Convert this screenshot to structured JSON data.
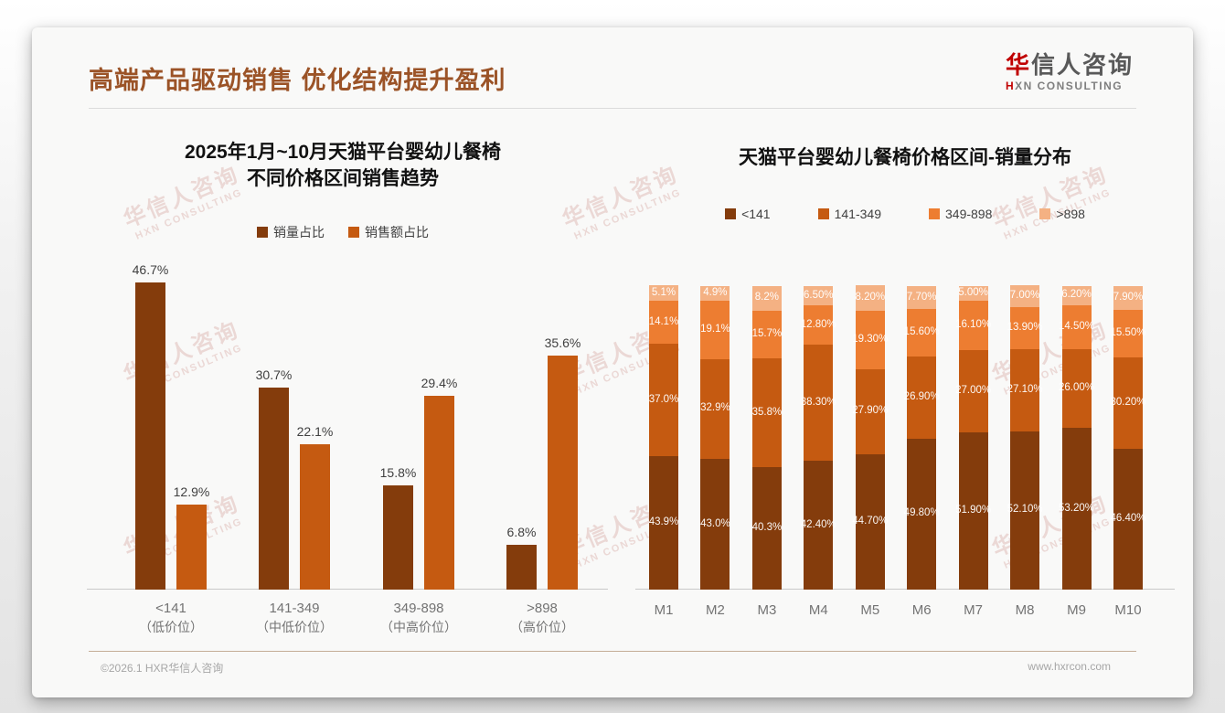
{
  "page": {
    "title": "高端产品驱动销售 优化结构提升盈利",
    "logo": {
      "cn_red": "华",
      "cn_rest": "信人咨询",
      "en_red": "H",
      "en_rest": "XN CONSULTING"
    },
    "footer": {
      "copyright": "©2026.1 HXR华信人咨询",
      "website": "www.hxrcon.com"
    },
    "watermark": {
      "line1": "华信人咨询",
      "line2": "HXN CONSULTING"
    }
  },
  "colors": {
    "dark_brown": "#843C0C",
    "brown_orange": "#C55A11",
    "orange": "#ED7D31",
    "light_orange": "#F4B183",
    "title_brown": "#9B5327",
    "logo_red": "#C00000"
  },
  "chart_data": [
    {
      "type": "bar",
      "title": "2025年1月~10月天猫平台婴幼儿餐椅 不同价格区间销售趋势",
      "title_lines": [
        "2025年1月~10月天猫平台婴幼儿餐椅",
        "不同价格区间销售趋势"
      ],
      "categories": [
        "<141",
        "141-349",
        "349-898",
        ">898"
      ],
      "category_sublabels": [
        "（低价位）",
        "（中低价位）",
        "（中高价位）",
        "（高价位）"
      ],
      "series": [
        {
          "name": "销量占比",
          "color": "#843C0C",
          "values": [
            46.7,
            30.7,
            15.8,
            6.8
          ],
          "labels": [
            "46.7%",
            "30.7%",
            "15.8%",
            "6.8%"
          ]
        },
        {
          "name": "销售额占比",
          "color": "#C55A11",
          "values": [
            12.9,
            22.1,
            29.4,
            35.6
          ],
          "labels": [
            "12.9%",
            "22.1%",
            "29.4%",
            "35.6%"
          ]
        }
      ],
      "ylim": [
        0,
        50
      ],
      "grid": false,
      "legend_position": "top",
      "unit": "%"
    },
    {
      "type": "stacked-bar",
      "title": "天猫平台婴幼儿餐椅价格区间-销量分布",
      "categories": [
        "M1",
        "M2",
        "M3",
        "M4",
        "M5",
        "M6",
        "M7",
        "M8",
        "M9",
        "M10"
      ],
      "series": [
        {
          "name": "<141",
          "color": "#843C0C",
          "values": [
            43.9,
            43.0,
            40.3,
            42.4,
            44.7,
            49.8,
            51.9,
            52.1,
            53.2,
            46.4
          ],
          "labels": [
            "43.9%",
            "43.0%",
            "40.3%",
            "42.40%",
            "44.70%",
            "49.80%",
            "51.90%",
            "52.10%",
            "53.20%",
            "46.40%"
          ]
        },
        {
          "name": "141-349",
          "color": "#C55A11",
          "values": [
            37.0,
            32.9,
            35.8,
            38.3,
            27.9,
            26.9,
            27.0,
            27.1,
            26.0,
            30.2
          ],
          "labels": [
            "37.0%",
            "32.9%",
            "35.8%",
            "38.30%",
            "27.90%",
            "26.90%",
            "27.00%",
            "27.10%",
            "26.00%",
            "30.20%"
          ]
        },
        {
          "name": "349-898",
          "color": "#ED7D31",
          "values": [
            14.1,
            19.1,
            15.7,
            12.8,
            19.3,
            15.6,
            16.1,
            13.9,
            14.5,
            15.5
          ],
          "labels": [
            "14.1%",
            "19.1%",
            "15.7%",
            "12.80%",
            "19.30%",
            "15.60%",
            "16.10%",
            "13.90%",
            "14.50%",
            "15.50%"
          ]
        },
        {
          "name": ">898",
          "color": "#F4B183",
          "values": [
            5.1,
            4.9,
            8.2,
            6.5,
            8.2,
            7.7,
            5.0,
            7.0,
            6.2,
            7.9
          ],
          "labels": [
            "5.1%",
            "4.9%",
            "8.2%",
            "6.50%",
            "8.20%",
            "7.70%",
            "5.00%",
            "7.00%",
            "6.20%",
            "7.90%"
          ]
        }
      ],
      "ylim": [
        0,
        100
      ],
      "grid": false,
      "legend_position": "top",
      "unit": "%"
    }
  ]
}
